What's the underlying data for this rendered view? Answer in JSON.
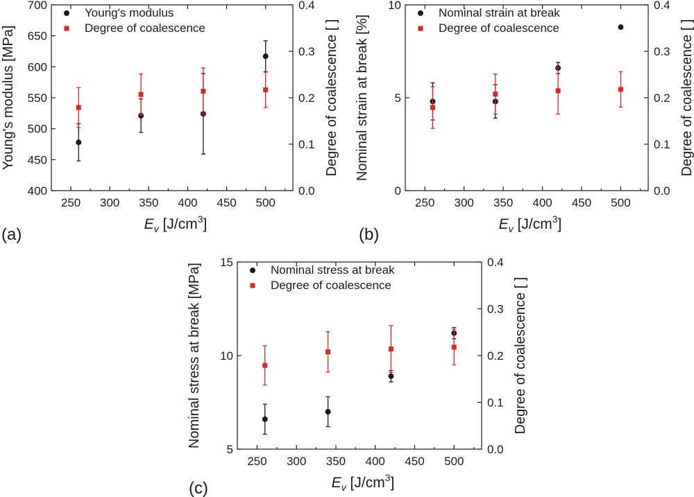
{
  "chart_data": [
    {
      "type": "scatter",
      "panel_label": "(a)",
      "xlabel": {
        "main": "E",
        "sub": "v",
        "unit_prefix": " [J/cm",
        "unit_sup": "3",
        "unit_suffix": "]"
      },
      "ylabel_left": "Young's modulus [MPa]",
      "ylabel_right": "Degree of coalescence [ ]",
      "xlim": [
        225,
        535
      ],
      "ylim_left": [
        400,
        700
      ],
      "ylim_right": [
        0.0,
        0.4
      ],
      "xticks": [
        "250",
        "300",
        "350",
        "400",
        "450",
        "500"
      ],
      "yticks_left": [
        "400",
        "450",
        "500",
        "550",
        "600",
        "650",
        "700"
      ],
      "yticks_right": [
        "0.0",
        "0.1",
        "0.2",
        "0.3",
        "0.4"
      ],
      "legend_position": "top-left",
      "series": [
        {
          "name": "Young's modulus",
          "axis": "left",
          "color": "#1a1a1a",
          "marker": "circle",
          "x": [
            260,
            340,
            420,
            500
          ],
          "y": [
            478,
            521,
            524,
            617
          ],
          "err": [
            30,
            27,
            65,
            25
          ]
        },
        {
          "name": "Degree of coalescence",
          "axis": "right",
          "color": "#e32222",
          "marker": "square",
          "x": [
            260,
            340,
            420,
            500
          ],
          "y": [
            0.179,
            0.207,
            0.214,
            0.217
          ],
          "err": [
            0.043,
            0.044,
            0.05,
            0.038
          ]
        }
      ]
    },
    {
      "type": "scatter",
      "panel_label": "(b)",
      "xlabel": {
        "main": "E",
        "sub": "v",
        "unit_prefix": " [J/cm",
        "unit_sup": "3",
        "unit_suffix": "]"
      },
      "ylabel_left": "Nominal strain at break [%]",
      "ylabel_right": "Degree of coalescence [ ]",
      "xlim": [
        225,
        535
      ],
      "ylim_left": [
        0,
        10
      ],
      "ylim_right": [
        0.0,
        0.4
      ],
      "xticks": [
        "250",
        "300",
        "350",
        "400",
        "450",
        "500"
      ],
      "yticks_left": [
        "0",
        "5",
        "10"
      ],
      "yticks_right": [
        "0.0",
        "0.1",
        "0.2",
        "0.3",
        "0.4"
      ],
      "legend_position": "top-left",
      "series": [
        {
          "name": "Nominal strain at break",
          "axis": "left",
          "color": "#1a1a1a",
          "marker": "circle",
          "x": [
            260,
            340,
            420,
            500
          ],
          "y": [
            4.8,
            4.8,
            6.6,
            8.8
          ],
          "err": [
            1.0,
            0.9,
            0.3,
            0.08
          ]
        },
        {
          "name": "Degree of coalescence",
          "axis": "right",
          "color": "#e32222",
          "marker": "square",
          "x": [
            260,
            340,
            420,
            500
          ],
          "y": [
            0.179,
            0.208,
            0.215,
            0.218
          ],
          "err": [
            0.045,
            0.043,
            0.05,
            0.038
          ]
        }
      ]
    },
    {
      "type": "scatter",
      "panel_label": "(c)",
      "xlabel": {
        "main": "E",
        "sub": "v",
        "unit_prefix": " [J/cm",
        "unit_sup": "3",
        "unit_suffix": "]"
      },
      "ylabel_left": "Nominal stress at break [MPa]",
      "ylabel_right": "Degree of coalescence [ ]",
      "xlim": [
        225,
        535
      ],
      "ylim_left": [
        5,
        15
      ],
      "ylim_right": [
        0.0,
        0.4
      ],
      "xticks": [
        "250",
        "300",
        "350",
        "400",
        "450",
        "500"
      ],
      "yticks_left": [
        "5",
        "10",
        "15"
      ],
      "yticks_right": [
        "0.0",
        "0.1",
        "0.2",
        "0.3",
        "0.4"
      ],
      "legend_position": "top-left",
      "series": [
        {
          "name": "Nominal stress at break",
          "axis": "left",
          "color": "#1a1a1a",
          "marker": "circle",
          "x": [
            260,
            340,
            420,
            500
          ],
          "y": [
            6.6,
            7.0,
            8.9,
            11.2
          ],
          "err": [
            0.8,
            0.8,
            0.3,
            0.3
          ]
        },
        {
          "name": "Degree of coalescence",
          "axis": "right",
          "color": "#e32222",
          "marker": "square",
          "x": [
            260,
            340,
            420,
            500
          ],
          "y": [
            0.179,
            0.208,
            0.214,
            0.218
          ],
          "err": [
            0.042,
            0.043,
            0.05,
            0.038
          ]
        }
      ]
    }
  ]
}
